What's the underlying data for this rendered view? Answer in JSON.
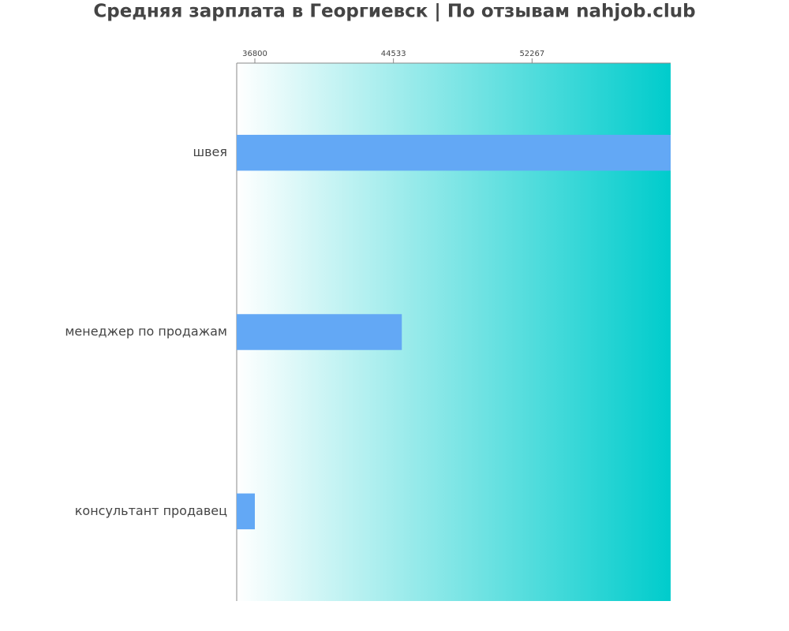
{
  "chart_data": {
    "type": "bar",
    "orientation": "horizontal",
    "title": "Средняя зарплата в Георгиевск | По отзывам nahjob.club",
    "categories": [
      "швея",
      "менеджер по продажам",
      "консультант продавец"
    ],
    "values": [
      60000,
      45000,
      36800
    ],
    "color": "#63a8f5",
    "xlim": [
      35787,
      60000
    ],
    "xticks": [
      36800,
      44533,
      52267
    ]
  }
}
